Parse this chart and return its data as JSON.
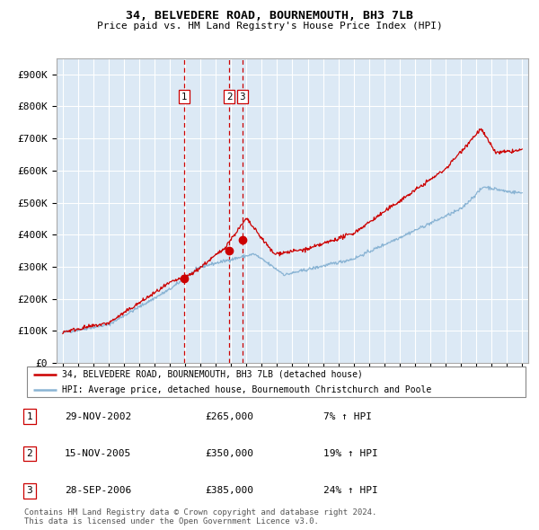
{
  "title": "34, BELVEDERE ROAD, BOURNEMOUTH, BH3 7LB",
  "subtitle": "Price paid vs. HM Land Registry's House Price Index (HPI)",
  "plot_bg_color": "#dce9f5",
  "grid_color": "#ffffff",
  "red_line_color": "#cc0000",
  "blue_line_color": "#8ab4d4",
  "ylim": [
    0,
    950000
  ],
  "yticks": [
    0,
    100000,
    200000,
    300000,
    400000,
    500000,
    600000,
    700000,
    800000,
    900000
  ],
  "ytick_labels": [
    "£0",
    "£100K",
    "£200K",
    "£300K",
    "£400K",
    "£500K",
    "£600K",
    "£700K",
    "£800K",
    "£900K"
  ],
  "x_start_year": 1995,
  "x_end_year": 2025,
  "sales": [
    {
      "label": "1",
      "date_num": 2002.91,
      "price": 265000
    },
    {
      "label": "2",
      "date_num": 2005.88,
      "price": 350000
    },
    {
      "label": "3",
      "date_num": 2006.74,
      "price": 385000
    }
  ],
  "legend_entries": [
    "34, BELVEDERE ROAD, BOURNEMOUTH, BH3 7LB (detached house)",
    "HPI: Average price, detached house, Bournemouth Christchurch and Poole"
  ],
  "table": [
    {
      "num": "1",
      "date": "29-NOV-2002",
      "price": "£265,000",
      "hpi": "7% ↑ HPI"
    },
    {
      "num": "2",
      "date": "15-NOV-2005",
      "price": "£350,000",
      "hpi": "19% ↑ HPI"
    },
    {
      "num": "3",
      "date": "28-SEP-2006",
      "price": "£385,000",
      "hpi": "24% ↑ HPI"
    }
  ],
  "footer": "Contains HM Land Registry data © Crown copyright and database right 2024.\nThis data is licensed under the Open Government Licence v3.0."
}
